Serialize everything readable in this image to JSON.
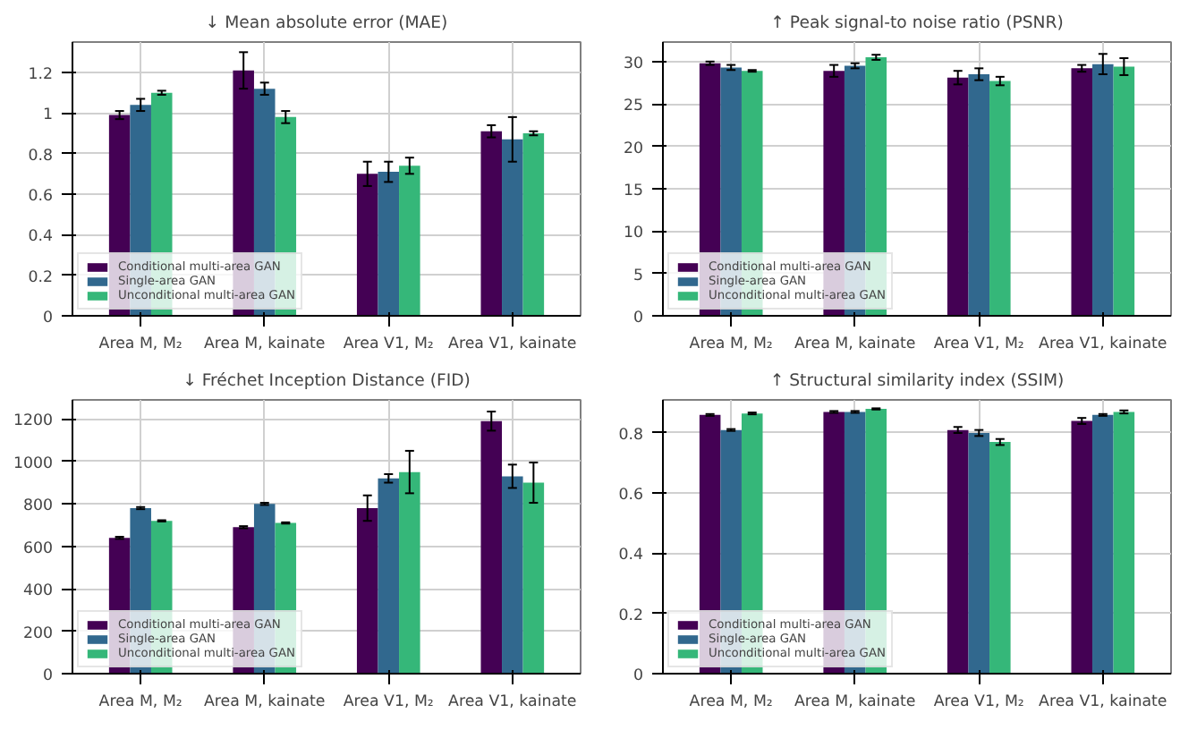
{
  "chart_data": [
    {
      "type": "bar",
      "title": "↓ Mean absolute error (MAE)",
      "categories": [
        "Area M, M₂",
        "Area M, kainate",
        "Area V1, M₂",
        "Area V1, kainate"
      ],
      "ylim": [
        0,
        1.35
      ],
      "yticks": [
        0.0,
        0.2,
        0.4,
        0.6,
        0.8,
        1.0,
        1.2
      ],
      "grid": true,
      "legend": "bottom left",
      "series": [
        {
          "name": "Conditional multi-area GAN",
          "color": "#440154",
          "values": [
            0.99,
            1.21,
            0.7,
            0.91
          ],
          "errors": [
            0.02,
            0.09,
            0.06,
            0.03
          ]
        },
        {
          "name": "Single-area GAN",
          "color": "#31688e",
          "values": [
            1.04,
            1.12,
            0.71,
            0.87
          ],
          "errors": [
            0.03,
            0.03,
            0.05,
            0.11
          ]
        },
        {
          "name": "Unconditional multi-area GAN",
          "color": "#35b779",
          "values": [
            1.1,
            0.98,
            0.74,
            0.9
          ],
          "errors": [
            0.01,
            0.03,
            0.04,
            0.01
          ]
        }
      ]
    },
    {
      "type": "bar",
      "title": "↑ Peak signal-to noise ratio (PSNR)",
      "categories": [
        "Area M, M₂",
        "Area M, kainate",
        "Area V1, M₂",
        "Area V1, kainate"
      ],
      "ylim": [
        0,
        32.3
      ],
      "yticks": [
        0,
        5,
        10,
        15,
        20,
        25,
        30
      ],
      "grid": true,
      "legend": "bottom left",
      "series": [
        {
          "name": "Conditional multi-area GAN",
          "color": "#440154",
          "values": [
            29.8,
            28.9,
            28.1,
            29.2
          ],
          "errors": [
            0.2,
            0.7,
            0.8,
            0.4
          ]
        },
        {
          "name": "Single-area GAN",
          "color": "#31688e",
          "values": [
            29.3,
            29.5,
            28.5,
            29.7
          ],
          "errors": [
            0.3,
            0.3,
            0.7,
            1.2
          ]
        },
        {
          "name": "Unconditional multi-area GAN",
          "color": "#35b779",
          "values": [
            28.9,
            30.5,
            27.7,
            29.4
          ],
          "errors": [
            0.1,
            0.3,
            0.5,
            1.0
          ]
        }
      ]
    },
    {
      "type": "bar",
      "title": "↓ Fréchet Inception Distance (FID)",
      "categories": [
        "Area M, M₂",
        "Area M, kainate",
        "Area V1, M₂",
        "Area V1, kainate"
      ],
      "ylim": [
        0,
        1290
      ],
      "yticks": [
        0,
        200,
        400,
        600,
        800,
        1000,
        1200
      ],
      "grid": true,
      "legend": "bottom left",
      "series": [
        {
          "name": "Conditional multi-area GAN",
          "color": "#440154",
          "values": [
            640,
            690,
            780,
            1190
          ],
          "errors": [
            5,
            5,
            60,
            45
          ]
        },
        {
          "name": "Single-area GAN",
          "color": "#31688e",
          "values": [
            780,
            800,
            920,
            930
          ],
          "errors": [
            5,
            5,
            20,
            55
          ]
        },
        {
          "name": "Unconditional multi-area GAN",
          "color": "#35b779",
          "values": [
            720,
            710,
            950,
            900
          ],
          "errors": [
            3,
            3,
            100,
            95
          ]
        }
      ]
    },
    {
      "type": "bar",
      "title": "↑ Structural similarity index (SSIM)",
      "categories": [
        "Area M, M₂",
        "Area M, kainate",
        "Area V1, M₂",
        "Area V1, kainate"
      ],
      "ylim": [
        0,
        0.91
      ],
      "yticks": [
        0.0,
        0.2,
        0.4,
        0.6,
        0.8
      ],
      "grid": true,
      "legend": "bottom left",
      "series": [
        {
          "name": "Conditional multi-area GAN",
          "color": "#440154",
          "values": [
            0.86,
            0.87,
            0.81,
            0.84
          ],
          "errors": [
            0.003,
            0.003,
            0.01,
            0.01
          ]
        },
        {
          "name": "Single-area GAN",
          "color": "#31688e",
          "values": [
            0.81,
            0.87,
            0.8,
            0.86
          ],
          "errors": [
            0.003,
            0.003,
            0.01,
            0.003
          ]
        },
        {
          "name": "Unconditional multi-area GAN",
          "color": "#35b779",
          "values": [
            0.865,
            0.88,
            0.77,
            0.87
          ],
          "errors": [
            0.003,
            0.002,
            0.01,
            0.005
          ]
        }
      ]
    }
  ]
}
